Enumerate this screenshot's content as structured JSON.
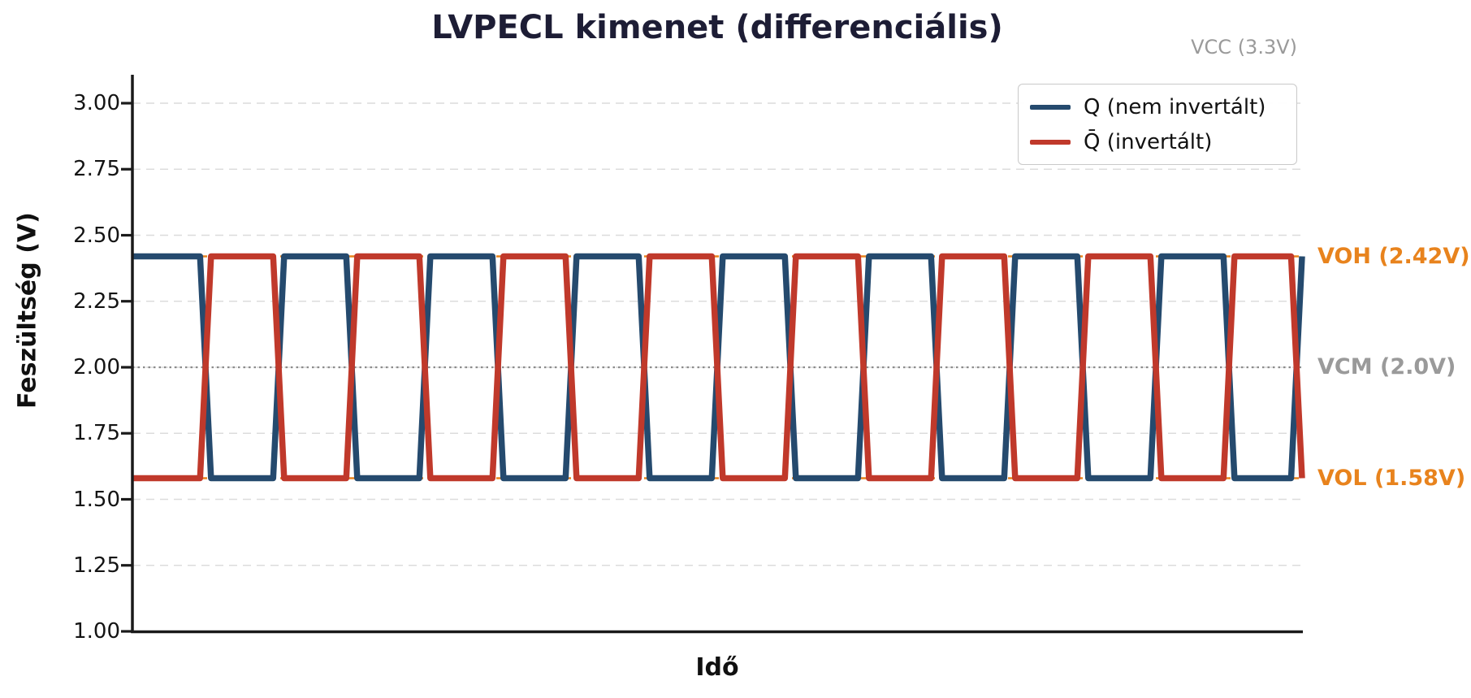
{
  "chart_data": {
    "type": "line",
    "title": "LVPECL kimenet (differenciális)",
    "xlabel": "Idő",
    "ylabel": "Feszültség (V)",
    "ylim": [
      1.0,
      3.1
    ],
    "xticks": [],
    "yticks": [
      {
        "label": "3.00",
        "value": 3.0
      },
      {
        "label": "2.75",
        "value": 2.75
      },
      {
        "label": "2.50",
        "value": 2.5
      },
      {
        "label": "2.25",
        "value": 2.25
      },
      {
        "label": "2.00",
        "value": 2.0
      },
      {
        "label": "1.75",
        "value": 1.75
      },
      {
        "label": "1.50",
        "value": 1.5
      },
      {
        "label": "1.25",
        "value": 1.25
      },
      {
        "label": "1.00",
        "value": 1.0
      }
    ],
    "grid": {
      "axis": "y",
      "style": "dashed",
      "color": "#dcdcdc"
    },
    "waveform": {
      "kind": "differential-square-wave",
      "periods": 8,
      "voh_v": 2.42,
      "vol_v": 1.58,
      "vcm_v": 2.0,
      "vcc_v": 3.3,
      "rise_fall_fraction": 0.15
    },
    "series": [
      {
        "name": "Q (nem invertált)",
        "color": "#254a6e",
        "initial_state": "high"
      },
      {
        "name": "Q̄ (invertált)",
        "color": "#c0392b",
        "initial_state": "low"
      }
    ],
    "legend": {
      "position": "upper right"
    },
    "reference_lines": [
      {
        "label": "VOH (2.42V)",
        "value": 2.42,
        "line_style": "dashed",
        "line_color": "#e8831d",
        "label_color": "#e8831d"
      },
      {
        "label": "VCM (2.0V)",
        "value": 2.0,
        "line_style": "dotted",
        "line_color": "#8c8c8c",
        "label_color": "#9a9a9a"
      },
      {
        "label": "VOL (1.58V)",
        "value": 1.58,
        "line_style": "dashed",
        "line_color": "#e8831d",
        "label_color": "#e8831d"
      }
    ],
    "annotations": [
      {
        "text": "VCC (3.3V)",
        "color": "#9a9a9a",
        "position": "top-right"
      }
    ],
    "style": {
      "title_color": "#1d1d35",
      "axis_color": "#1a1a1a",
      "tick_label_color": "#141414"
    }
  }
}
